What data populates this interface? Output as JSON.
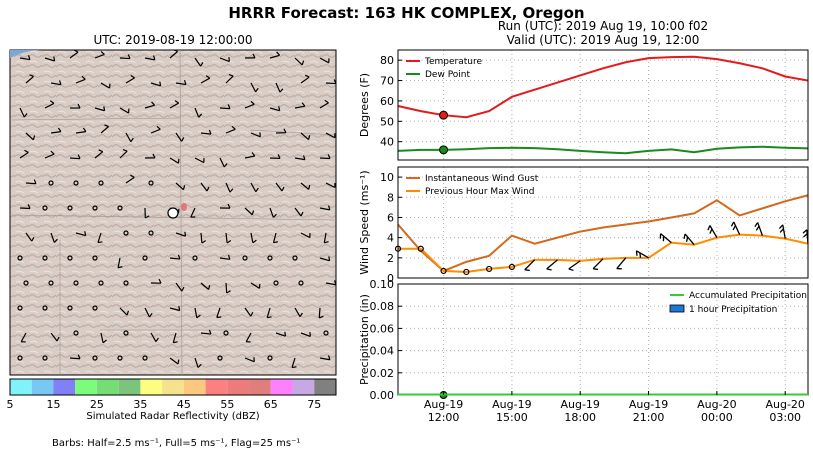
{
  "title": "HRRR Forecast: 163 HK COMPLEX, Oregon",
  "map_panel": {
    "title": "UTC: 2019-08-19 12:00:00",
    "colorbar_label": "Simulated Radar Reflectivity (dBZ)",
    "colorbar_ticks": [
      "5",
      "15",
      "25",
      "35",
      "45",
      "55",
      "65",
      "75"
    ],
    "colorbar_colors": [
      "#7ff3f9",
      "#77c8f5",
      "#8080f8",
      "#7bfd7b",
      "#75dd75",
      "#7bc47b",
      "#fdfd80",
      "#f6e18d",
      "#fcc77f",
      "#fd8080",
      "#ed7b7b",
      "#e07d7d",
      "#ff80ff",
      "#c6a8e4",
      "#808080"
    ],
    "barb_note": "Barbs: Half=2.5 ms⁻¹, Full=5 ms⁻¹, Flag=25 ms⁻¹",
    "fire_color": "#e07070"
  },
  "run_info": {
    "run": "Run (UTC): 2019 Aug 19, 10:00 f02",
    "valid": "Valid (UTC): 2019 Aug 19, 12:00"
  },
  "colors": {
    "temperature": "#e41a1c",
    "dew_point": "#1a8a1a",
    "gust": "#d2691e",
    "max_wind": "#ff8c00",
    "precip_line": "#33cc33",
    "precip_bar": "#1f78d4",
    "marker_red": "#e41a1c",
    "marker_green": "#1a8a1a"
  },
  "chart_data": [
    {
      "type": "line",
      "ylabel": "Degrees (F)",
      "ylim": [
        31,
        85
      ],
      "yticks": [
        40,
        50,
        60,
        70,
        80
      ],
      "grid": true,
      "legend": "top-left",
      "x": [
        10,
        11,
        12,
        13,
        14,
        15,
        16,
        17,
        18,
        19,
        20,
        21,
        22,
        23,
        24,
        25,
        26,
        27,
        28
      ],
      "series": [
        {
          "name": "Temperature",
          "values": [
            57.5,
            55.0,
            53.0,
            52.0,
            55.0,
            62.0,
            65.5,
            69.0,
            72.5,
            76.0,
            79.0,
            81.0,
            81.5,
            81.7,
            80.5,
            78.5,
            76.0,
            72.0,
            70.0
          ]
        },
        {
          "name": "Dew Point",
          "values": [
            35.5,
            36.0,
            36.0,
            36.3,
            36.8,
            37.0,
            36.8,
            36.3,
            35.5,
            34.8,
            34.3,
            35.5,
            36.2,
            34.8,
            36.5,
            37.2,
            37.5,
            37.0,
            36.7
          ]
        }
      ],
      "marker_x": 12,
      "marker_values": {
        "Temperature": 53.0,
        "Dew Point": 36.0
      }
    },
    {
      "type": "line",
      "ylabel": "Wind Speed (ms⁻¹)",
      "ylim": [
        0,
        11
      ],
      "yticks": [
        0,
        2,
        4,
        6,
        8,
        10
      ],
      "grid": true,
      "legend": "top-left",
      "x": [
        10,
        11,
        12,
        13,
        14,
        15,
        16,
        17,
        18,
        19,
        20,
        21,
        22,
        23,
        24,
        25,
        26,
        27,
        28
      ],
      "series": [
        {
          "name": "Instantaneous Wind Gust",
          "values": [
            5.3,
            2.7,
            0.7,
            1.6,
            2.2,
            4.2,
            3.4,
            4.0,
            4.6,
            5.0,
            5.3,
            5.6,
            6.0,
            6.4,
            7.7,
            6.2,
            6.9,
            7.6,
            8.2
          ]
        },
        {
          "name": "Previous Hour Max Wind",
          "values": [
            2.9,
            2.9,
            0.7,
            0.6,
            0.9,
            1.1,
            1.8,
            1.8,
            1.7,
            1.9,
            2.0,
            2.0,
            3.5,
            3.3,
            4.0,
            4.3,
            4.2,
            3.9,
            3.4
          ]
        }
      ],
      "barb_speeds": [
        0,
        0,
        0,
        0,
        0,
        0,
        1.5,
        1.5,
        1.5,
        2.0,
        2.5,
        4.5,
        5.0,
        4.5,
        5.5,
        5.5,
        6.5,
        7.0,
        7.5
      ],
      "barb_dirs": [
        0,
        0,
        0,
        0,
        0,
        0,
        225,
        230,
        235,
        225,
        220,
        300,
        310,
        320,
        330,
        335,
        340,
        350,
        355
      ]
    },
    {
      "type": "line",
      "ylabel": "Precipitation (in)",
      "ylim": [
        0,
        0.1
      ],
      "yticks": [
        "0.00",
        "0.02",
        "0.04",
        "0.06",
        "0.08",
        "0.10"
      ],
      "grid": true,
      "legend": "top-right",
      "x": [
        10,
        11,
        12,
        13,
        14,
        15,
        16,
        17,
        18,
        19,
        20,
        21,
        22,
        23,
        24,
        25,
        26,
        27,
        28
      ],
      "series": [
        {
          "name": "Accumulated Precipitation",
          "values": [
            0,
            0,
            0,
            0,
            0,
            0,
            0,
            0,
            0,
            0,
            0,
            0,
            0,
            0,
            0,
            0,
            0,
            0,
            0
          ]
        },
        {
          "name": "1 hour Precipitation",
          "values": [
            0,
            0,
            0,
            0,
            0,
            0,
            0,
            0,
            0,
            0,
            0,
            0,
            0,
            0,
            0,
            0,
            0,
            0,
            0
          ]
        }
      ],
      "marker_x": 12,
      "marker_value": 0,
      "xticks": [
        {
          "x": 12,
          "date": "Aug-19",
          "time": "12:00"
        },
        {
          "x": 15,
          "date": "Aug-19",
          "time": "15:00"
        },
        {
          "x": 18,
          "date": "Aug-19",
          "time": "18:00"
        },
        {
          "x": 21,
          "date": "Aug-19",
          "time": "21:00"
        },
        {
          "x": 24,
          "date": "Aug-20",
          "time": "00:00"
        },
        {
          "x": 27,
          "date": "Aug-20",
          "time": "03:00"
        }
      ]
    }
  ]
}
